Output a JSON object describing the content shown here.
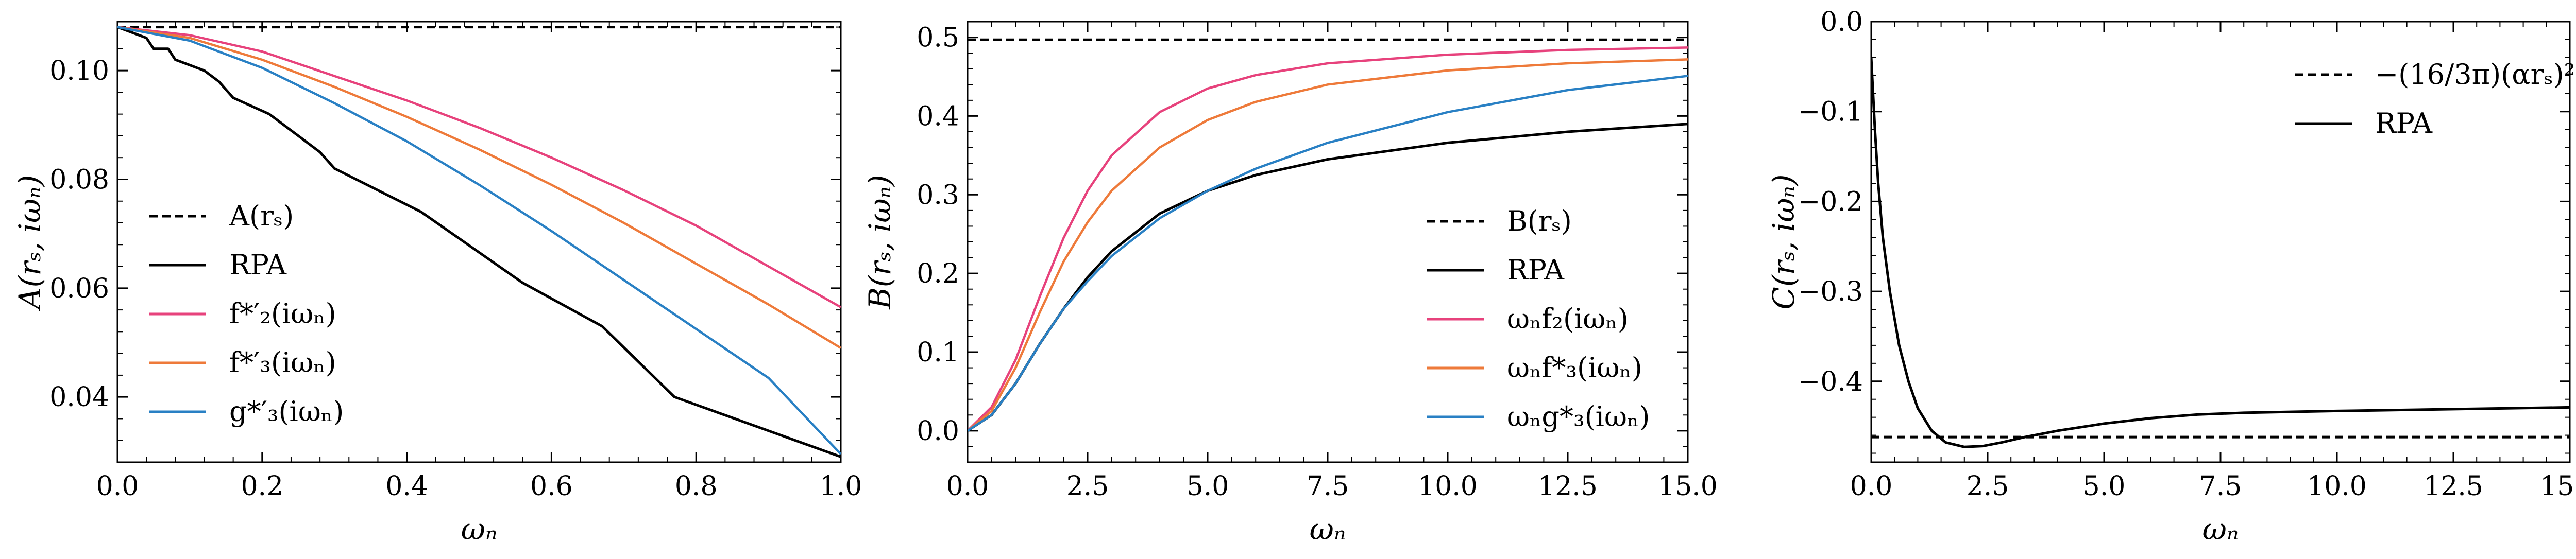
{
  "chart_data": [
    {
      "type": "line",
      "xlabel": "ωₙ",
      "ylabel": "A(rₛ, iωₙ)",
      "xlim": [
        0,
        1.0
      ],
      "ylim": [
        0.028,
        0.109
      ],
      "xticks": [
        0.0,
        0.2,
        0.4,
        0.6,
        0.8,
        1.0
      ],
      "xtick_labels": [
        "0.0",
        "0.2",
        "0.4",
        "0.6",
        "0.8",
        "1.0"
      ],
      "yticks": [
        0.04,
        0.06,
        0.08,
        0.1
      ],
      "ytick_labels": [
        "0.04",
        "0.06",
        "0.08",
        "0.10"
      ],
      "legend_position": "lower-left",
      "series": [
        {
          "name": "A(rₛ)",
          "color": "#000000",
          "dash": "dashed",
          "x": [
            0,
            1.0
          ],
          "y": [
            0.108,
            0.108
          ]
        },
        {
          "name": "RPA",
          "color": "#000000",
          "dash": "solid",
          "x": [
            0.0,
            0.02,
            0.04,
            0.05,
            0.07,
            0.08,
            0.1,
            0.12,
            0.14,
            0.16,
            0.21,
            0.25,
            0.28,
            0.3,
            0.42,
            0.56,
            0.67,
            0.77,
            1.0
          ],
          "y": [
            0.108,
            0.107,
            0.106,
            0.104,
            0.104,
            0.102,
            0.101,
            0.1,
            0.098,
            0.095,
            0.092,
            0.088,
            0.085,
            0.082,
            0.074,
            0.061,
            0.053,
            0.04,
            0.029
          ]
        },
        {
          "name": "f*′₂(iωₙ)",
          "color": "#e7427c",
          "dash": "solid",
          "x": [
            0.0,
            0.1,
            0.2,
            0.3,
            0.4,
            0.5,
            0.6,
            0.7,
            0.8,
            0.9,
            1.0
          ],
          "y": [
            0.108,
            0.1065,
            0.1035,
            0.099,
            0.0945,
            0.0895,
            0.084,
            0.078,
            0.0715,
            0.064,
            0.0565
          ]
        },
        {
          "name": "f*′₃(iωₙ)",
          "color": "#ee7a3a",
          "dash": "solid",
          "x": [
            0.0,
            0.1,
            0.2,
            0.3,
            0.4,
            0.5,
            0.6,
            0.7,
            0.8,
            0.9,
            1.0
          ],
          "y": [
            0.108,
            0.106,
            0.102,
            0.097,
            0.0915,
            0.0855,
            0.079,
            0.072,
            0.0645,
            0.057,
            0.049
          ]
        },
        {
          "name": "g*′₃(iωₙ)",
          "color": "#2980c4",
          "dash": "solid",
          "x": [
            0.0,
            0.1,
            0.2,
            0.3,
            0.4,
            0.5,
            0.6,
            0.7,
            0.8,
            0.9,
            1.0
          ],
          "y": [
            0.108,
            0.1055,
            0.1005,
            0.094,
            0.087,
            0.079,
            0.0705,
            0.0615,
            0.0525,
            0.0435,
            0.0295
          ]
        }
      ]
    },
    {
      "type": "line",
      "xlabel": "ωₙ",
      "ylabel": "B(rₛ, iωₙ)",
      "xlim": [
        0,
        15.0
      ],
      "ylim": [
        -0.04,
        0.52
      ],
      "xticks": [
        0.0,
        2.5,
        5.0,
        7.5,
        10.0,
        12.5,
        15.0
      ],
      "xtick_labels": [
        "0.0",
        "2.5",
        "5.0",
        "7.5",
        "10.0",
        "12.5",
        "15.0"
      ],
      "yticks": [
        0.0,
        0.1,
        0.2,
        0.3,
        0.4,
        0.5
      ],
      "ytick_labels": [
        "0.0",
        "0.1",
        "0.2",
        "0.3",
        "0.4",
        "0.5"
      ],
      "legend_position": "lower-right",
      "series": [
        {
          "name": "B(rₛ)",
          "color": "#000000",
          "dash": "dashed",
          "x": [
            0,
            15.0
          ],
          "y": [
            0.497,
            0.497
          ]
        },
        {
          "name": "RPA",
          "color": "#000000",
          "dash": "solid",
          "x": [
            0,
            0.5,
            1.0,
            1.5,
            2.0,
            2.5,
            3.0,
            4.0,
            5.0,
            6.0,
            7.5,
            10.0,
            12.5,
            15.0
          ],
          "y": [
            0.0,
            0.02,
            0.06,
            0.11,
            0.155,
            0.195,
            0.228,
            0.276,
            0.305,
            0.325,
            0.345,
            0.366,
            0.38,
            0.39
          ]
        },
        {
          "name": "ωₙf₂(iωₙ)",
          "color": "#e7427c",
          "dash": "solid",
          "x": [
            0,
            0.5,
            1.0,
            1.5,
            2.0,
            2.5,
            3.0,
            4.0,
            5.0,
            6.0,
            7.5,
            10.0,
            12.5,
            15.0
          ],
          "y": [
            0.0,
            0.03,
            0.09,
            0.17,
            0.245,
            0.305,
            0.35,
            0.405,
            0.435,
            0.452,
            0.467,
            0.478,
            0.484,
            0.487
          ]
        },
        {
          "name": "ωₙf*₃(iωₙ)",
          "color": "#ee7a3a",
          "dash": "solid",
          "x": [
            0,
            0.5,
            1.0,
            1.5,
            2.0,
            2.5,
            3.0,
            4.0,
            5.0,
            6.0,
            7.5,
            10.0,
            12.5,
            15.0
          ],
          "y": [
            0.0,
            0.025,
            0.08,
            0.15,
            0.215,
            0.265,
            0.305,
            0.36,
            0.395,
            0.418,
            0.44,
            0.458,
            0.467,
            0.472
          ]
        },
        {
          "name": "ωₙg*₃(iωₙ)",
          "color": "#2980c4",
          "dash": "solid",
          "x": [
            0,
            0.5,
            1.0,
            1.5,
            2.0,
            2.5,
            3.0,
            4.0,
            5.0,
            6.0,
            7.5,
            10.0,
            12.5,
            15.0
          ],
          "y": [
            0.0,
            0.02,
            0.06,
            0.11,
            0.155,
            0.19,
            0.222,
            0.27,
            0.305,
            0.333,
            0.366,
            0.405,
            0.433,
            0.451
          ]
        }
      ]
    },
    {
      "type": "line",
      "xlabel": "ωₙ",
      "ylabel": "C(rₛ, iωₙ)",
      "xlim": [
        0,
        15.0
      ],
      "ylim": [
        -0.49,
        0.0
      ],
      "xticks": [
        0.0,
        2.5,
        5.0,
        7.5,
        10.0,
        12.5,
        15.0
      ],
      "xtick_labels": [
        "0.0",
        "2.5",
        "5.0",
        "7.5",
        "10.0",
        "12.5",
        "15.0"
      ],
      "yticks": [
        0.0,
        -0.1,
        -0.2,
        -0.3,
        -0.4
      ],
      "ytick_labels": [
        "0.0",
        "−0.1",
        "−0.2",
        "−0.3",
        "−0.4"
      ],
      "legend_position": "top-right",
      "series": [
        {
          "name": "−(16/3π)(αrₛ)²",
          "color": "#000000",
          "dash": "dashed",
          "x": [
            0,
            15.0
          ],
          "y": [
            -0.462,
            -0.462
          ]
        },
        {
          "name": "RPA",
          "color": "#000000",
          "dash": "solid",
          "x": [
            0.0,
            0.03,
            0.08,
            0.15,
            0.25,
            0.4,
            0.6,
            0.8,
            1.0,
            1.3,
            1.6,
            2.0,
            2.4,
            2.8,
            3.3,
            4.0,
            5.0,
            6.0,
            7.0,
            8.0,
            10.0,
            12.5,
            15.0
          ],
          "y": [
            -0.04,
            -0.07,
            -0.12,
            -0.18,
            -0.24,
            -0.3,
            -0.36,
            -0.4,
            -0.43,
            -0.455,
            -0.468,
            -0.473,
            -0.472,
            -0.468,
            -0.462,
            -0.455,
            -0.447,
            -0.441,
            -0.437,
            -0.435,
            -0.433,
            -0.431,
            -0.429
          ]
        }
      ]
    }
  ]
}
